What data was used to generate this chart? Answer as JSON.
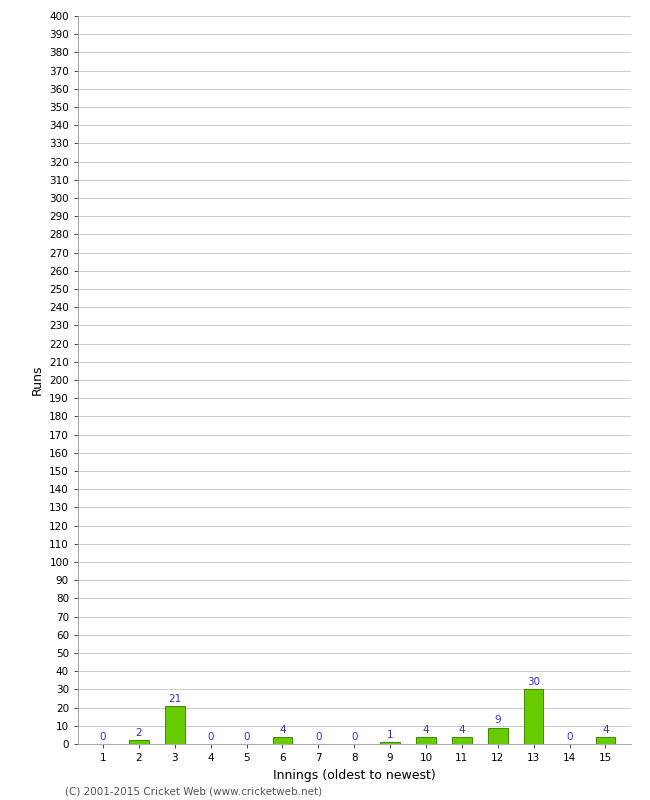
{
  "innings": [
    1,
    2,
    3,
    4,
    5,
    6,
    7,
    8,
    9,
    10,
    11,
    12,
    13,
    14,
    15
  ],
  "runs": [
    0,
    2,
    21,
    0,
    0,
    4,
    0,
    0,
    1,
    4,
    4,
    9,
    30,
    0,
    4
  ],
  "bar_color": "#66cc00",
  "bar_edge_color": "#448800",
  "label_color": "#3333cc",
  "xlabel": "Innings (oldest to newest)",
  "ylabel": "Runs",
  "ylim": [
    0,
    400
  ],
  "yticks": [
    0,
    10,
    20,
    30,
    40,
    50,
    60,
    70,
    80,
    90,
    100,
    110,
    120,
    130,
    140,
    150,
    160,
    170,
    180,
    190,
    200,
    210,
    220,
    230,
    240,
    250,
    260,
    270,
    280,
    290,
    300,
    310,
    320,
    330,
    340,
    350,
    360,
    370,
    380,
    390,
    400
  ],
  "grid_color": "#cccccc",
  "bg_color": "#ffffff",
  "footer": "(C) 2001-2015 Cricket Web (www.cricketweb.net)",
  "footer_color": "#555555",
  "axis_label_fontsize": 9,
  "bar_label_fontsize": 7.5,
  "tick_fontsize": 7.5,
  "footer_fontsize": 7.5
}
